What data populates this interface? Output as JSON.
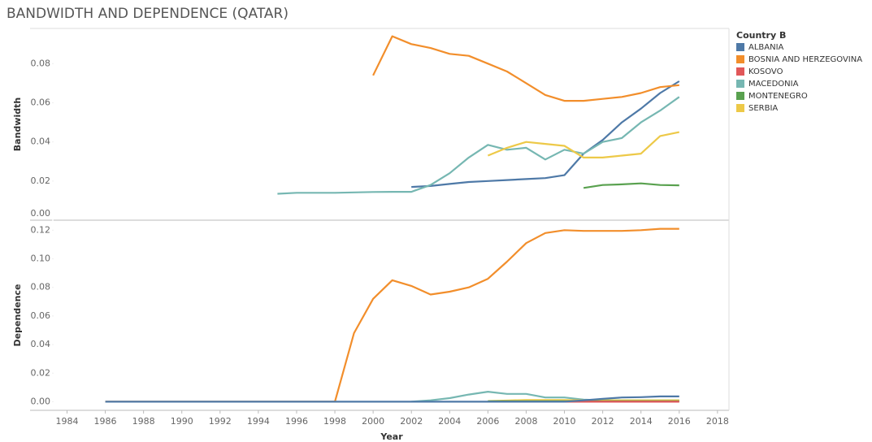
{
  "chart_data": [
    {
      "type": "line",
      "title": "BANDWIDTH AND DEPENDENCE (QATAR)",
      "legend_title": "Country B",
      "y_label": "Bandwidth",
      "x": [
        1986,
        1987,
        1988,
        1989,
        1990,
        1991,
        1992,
        1993,
        1994,
        1995,
        1996,
        1997,
        1998,
        1999,
        2000,
        2001,
        2002,
        2003,
        2004,
        2005,
        2006,
        2007,
        2008,
        2009,
        2010,
        2011,
        2012,
        2013,
        2014,
        2015,
        2016
      ],
      "xlim": [
        1983.3,
        2018.6
      ],
      "ylim": [
        0,
        0.098
      ],
      "yticks": [
        {
          "value": 0,
          "label": "0.00"
        },
        0.02,
        0.04,
        0.06,
        0.08
      ],
      "series": [
        {
          "name": "ALBANIA",
          "color": "#4e79a7",
          "values": [
            null,
            null,
            null,
            null,
            null,
            null,
            null,
            null,
            null,
            null,
            null,
            null,
            null,
            null,
            null,
            null,
            0.017,
            0.0175,
            0.0185,
            0.0195,
            0.02,
            0.0205,
            0.021,
            0.0215,
            0.023,
            0.034,
            0.041,
            0.05,
            0.057,
            0.065,
            0.071
          ]
        },
        {
          "name": "BOSNIA AND HERZEGOVINA",
          "color": "#f28e2b",
          "values": [
            null,
            null,
            null,
            null,
            null,
            null,
            null,
            null,
            null,
            null,
            null,
            null,
            null,
            null,
            0.074,
            0.094,
            0.09,
            0.088,
            0.085,
            0.084,
            0.08,
            0.076,
            0.07,
            0.064,
            0.061,
            0.061,
            0.062,
            0.063,
            0.065,
            0.068,
            0.069
          ]
        },
        {
          "name": "KOSOVO",
          "color": "#e15759",
          "values": [
            null,
            null,
            null,
            null,
            null,
            null,
            null,
            null,
            null,
            null,
            null,
            null,
            null,
            null,
            null,
            null,
            null,
            null,
            null,
            null,
            null,
            null,
            null,
            null,
            null,
            null,
            null,
            null,
            null,
            null,
            null
          ]
        },
        {
          "name": "MACEDONIA",
          "color": "#76b7b2",
          "values": [
            null,
            null,
            null,
            null,
            null,
            null,
            null,
            null,
            null,
            0.0135,
            0.014,
            0.014,
            0.014,
            0.0142,
            0.0144,
            0.0145,
            0.0145,
            0.018,
            0.024,
            0.032,
            0.0385,
            0.036,
            0.037,
            0.031,
            0.036,
            0.034,
            0.04,
            0.042,
            0.05,
            0.056,
            0.063
          ]
        },
        {
          "name": "MONTENEGRO",
          "color": "#59a14f",
          "values": [
            null,
            null,
            null,
            null,
            null,
            null,
            null,
            null,
            null,
            null,
            null,
            null,
            null,
            null,
            null,
            null,
            null,
            null,
            null,
            null,
            null,
            null,
            null,
            null,
            null,
            0.0165,
            0.018,
            0.0183,
            0.0188,
            0.018,
            0.0178
          ]
        },
        {
          "name": "SERBIA",
          "color": "#edc948",
          "values": [
            null,
            null,
            null,
            null,
            null,
            null,
            null,
            null,
            null,
            null,
            null,
            null,
            null,
            null,
            null,
            null,
            null,
            null,
            null,
            null,
            0.033,
            0.037,
            0.04,
            0.039,
            0.038,
            0.032,
            0.032,
            0.033,
            0.034,
            0.043,
            0.045
          ]
        }
      ]
    },
    {
      "type": "line",
      "y_label": "Dependence",
      "x_label": "Year",
      "x": [
        1986,
        1987,
        1988,
        1989,
        1990,
        1991,
        1992,
        1993,
        1994,
        1995,
        1996,
        1997,
        1998,
        1999,
        2000,
        2001,
        2002,
        2003,
        2004,
        2005,
        2006,
        2007,
        2008,
        2009,
        2010,
        2011,
        2012,
        2013,
        2014,
        2015,
        2016
      ],
      "xlim": [
        1983.3,
        2018.6
      ],
      "xticks": [
        1984,
        1986,
        1988,
        1990,
        1992,
        1994,
        1996,
        1998,
        2000,
        2002,
        2004,
        2006,
        2008,
        2010,
        2012,
        2014,
        2016,
        2018
      ],
      "ylim": [
        -0.006,
        0.127
      ],
      "yticks": [
        {
          "value": 0,
          "label": "0.00"
        },
        0.02,
        0.04,
        0.06,
        0.08,
        {
          "value": 0.1,
          "label": "0.10"
        },
        0.12
      ],
      "series": [
        {
          "color": "#f28e2b",
          "values": [
            0,
            0,
            0,
            0,
            0,
            0,
            0,
            0,
            0,
            0,
            0,
            0,
            0,
            0.048,
            0.072,
            0.085,
            0.081,
            0.075,
            0.077,
            0.08,
            0.086,
            0.098,
            0.111,
            0.118,
            0.12,
            0.1195,
            0.1195,
            0.1195,
            0.12,
            0.121,
            0.121
          ]
        },
        {
          "color": "#76b7b2",
          "values": [
            null,
            null,
            null,
            null,
            null,
            null,
            null,
            null,
            null,
            null,
            null,
            null,
            null,
            null,
            null,
            null,
            0,
            0.001,
            0.0025,
            0.005,
            0.007,
            0.0055,
            0.0055,
            0.003,
            0.003,
            0.0015,
            0.001,
            0.001,
            0.001,
            0.001,
            0.001
          ]
        },
        {
          "color": "#edc948",
          "values": [
            null,
            null,
            null,
            null,
            null,
            null,
            null,
            null,
            null,
            null,
            null,
            null,
            null,
            null,
            null,
            null,
            null,
            null,
            null,
            null,
            0.0005,
            0.0008,
            0.0012,
            0.0012,
            0.0012,
            0.001,
            0.001,
            0.001,
            0.001,
            0.001,
            0.001
          ]
        },
        {
          "color": "#59a14f",
          "values": [
            null,
            null,
            null,
            null,
            null,
            null,
            null,
            null,
            null,
            null,
            null,
            null,
            null,
            null,
            null,
            null,
            null,
            null,
            null,
            null,
            0.0003,
            0.0003,
            0.0003,
            0.0003,
            0.0003,
            0.0003,
            0.0003,
            0.0003,
            0.0003,
            0.0003,
            0.0003
          ]
        },
        {
          "color": "#e15759",
          "values": [
            null,
            null,
            null,
            null,
            null,
            null,
            null,
            null,
            null,
            null,
            null,
            null,
            null,
            null,
            null,
            null,
            null,
            null,
            null,
            null,
            null,
            null,
            null,
            null,
            0,
            0,
            0,
            0,
            0,
            0,
            0
          ]
        },
        {
          "color": "#4e79a7",
          "values": [
            0,
            0,
            0,
            0,
            0,
            0,
            0,
            0,
            0,
            0,
            0,
            0,
            0,
            0,
            0,
            0,
            0,
            0,
            0,
            0,
            0,
            0,
            0,
            0,
            0,
            0.001,
            0.002,
            0.003,
            0.0032,
            0.0037,
            0.0037
          ]
        }
      ]
    }
  ]
}
